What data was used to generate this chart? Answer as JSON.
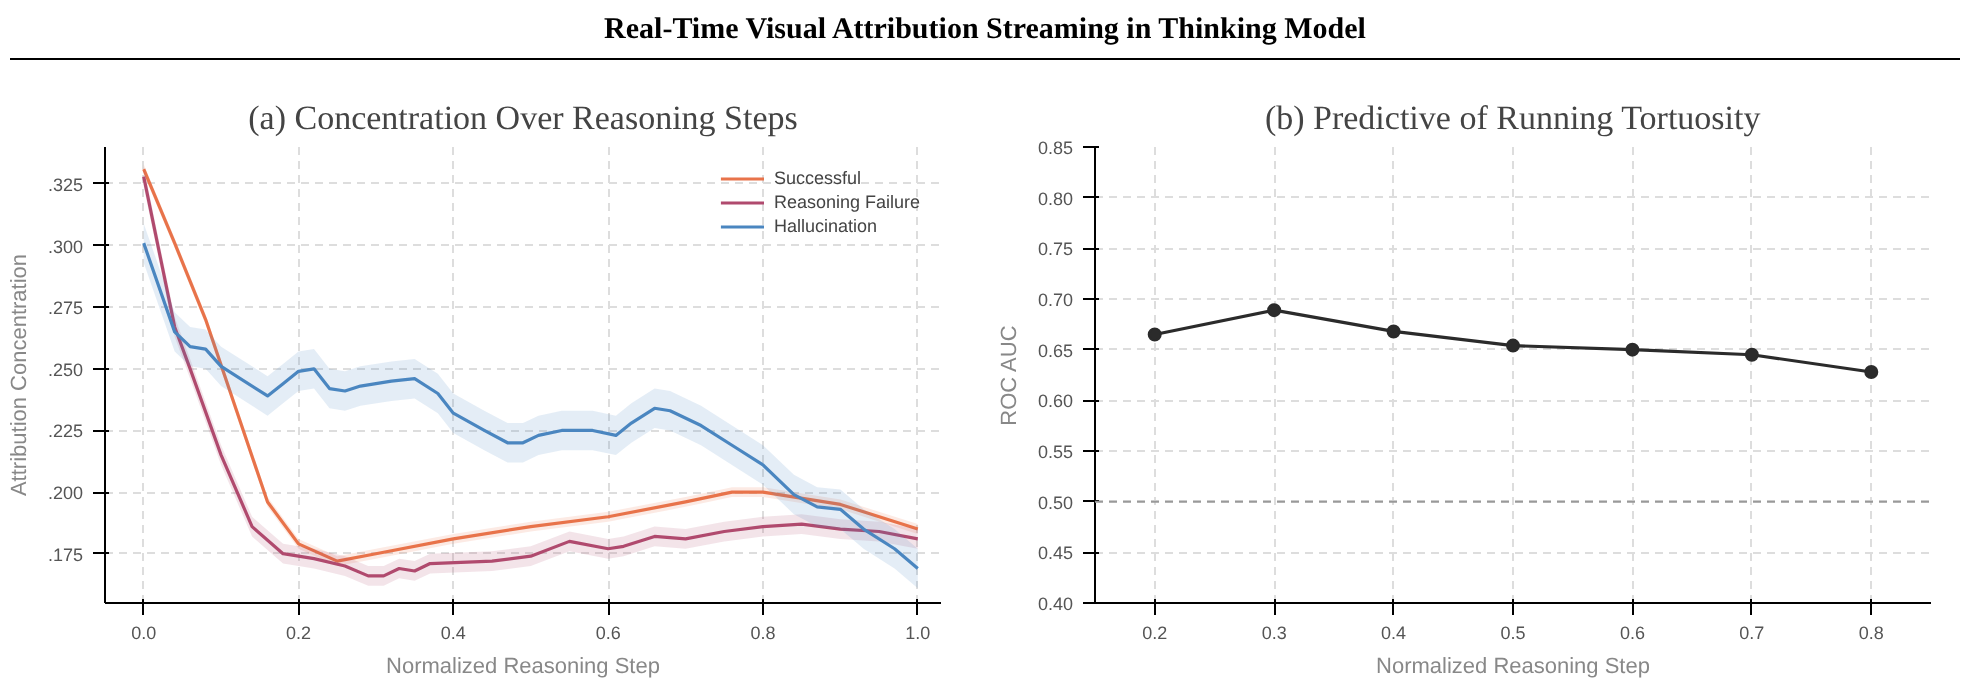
{
  "chart_data": [
    {
      "type": "other",
      "title": "Real-Time Visual Attribution Streaming in Thinking Model"
    },
    {
      "type": "line",
      "title": "(a) Concentration Over Reasoning Steps",
      "xlabel": "Normalized Reasoning Step",
      "ylabel": "Attribution Concentration",
      "xlim": [
        -0.05,
        1.03
      ],
      "ylim": [
        0.155,
        0.34
      ],
      "xticks": [
        {
          "value": 0,
          "label": "0.0"
        },
        0.2,
        0.4,
        0.6,
        0.8,
        {
          "value": 1,
          "label": "1.0"
        }
      ],
      "yticks": [
        {
          "value": 0.175,
          "label": ".175"
        },
        {
          "value": 0.2,
          "label": ".200"
        },
        {
          "value": 0.225,
          "label": ".225"
        },
        {
          "value": 0.25,
          "label": ".250"
        },
        {
          "value": 0.275,
          "label": ".275"
        },
        {
          "value": 0.3,
          "label": ".300"
        },
        {
          "value": 0.325,
          "label": ".325"
        }
      ],
      "grid": true,
      "legend": "top right",
      "series": [
        {
          "name": "Successful",
          "color": "#e8734a",
          "x": [
            0,
            0.04,
            0.08,
            0.12,
            0.16,
            0.2,
            0.25,
            0.3,
            0.4,
            0.5,
            0.6,
            0.7,
            0.76,
            0.8,
            0.9,
            1.0
          ],
          "values": [
            0.331,
            0.301,
            0.27,
            0.233,
            0.196,
            0.179,
            0.172,
            0.175,
            0.181,
            0.186,
            0.19,
            0.196,
            0.2,
            0.2,
            0.195,
            0.185
          ],
          "lower": [
            0.329,
            0.299,
            0.268,
            0.231,
            0.194,
            0.177,
            0.17,
            0.173,
            0.179,
            0.184,
            0.188,
            0.194,
            0.198,
            0.198,
            0.193,
            0.183
          ],
          "upper": [
            0.333,
            0.303,
            0.272,
            0.235,
            0.198,
            0.181,
            0.174,
            0.177,
            0.183,
            0.188,
            0.192,
            0.198,
            0.202,
            0.202,
            0.197,
            0.187
          ]
        },
        {
          "name": "Reasoning Failure",
          "color": "#b04a6e",
          "x": [
            0,
            0.04,
            0.06,
            0.1,
            0.14,
            0.18,
            0.22,
            0.26,
            0.29,
            0.31,
            0.33,
            0.35,
            0.37,
            0.45,
            0.5,
            0.55,
            0.6,
            0.62,
            0.66,
            0.7,
            0.75,
            0.8,
            0.85,
            0.9,
            0.95,
            1.0
          ],
          "values": [
            0.328,
            0.267,
            0.25,
            0.215,
            0.186,
            0.175,
            0.173,
            0.17,
            0.166,
            0.166,
            0.169,
            0.168,
            0.171,
            0.172,
            0.174,
            0.18,
            0.177,
            0.178,
            0.182,
            0.181,
            0.184,
            0.186,
            0.187,
            0.185,
            0.184,
            0.181
          ],
          "lower": [
            0.324,
            0.263,
            0.246,
            0.211,
            0.182,
            0.171,
            0.169,
            0.166,
            0.162,
            0.162,
            0.165,
            0.164,
            0.167,
            0.168,
            0.17,
            0.176,
            0.173,
            0.174,
            0.178,
            0.177,
            0.18,
            0.182,
            0.183,
            0.181,
            0.18,
            0.177
          ],
          "upper": [
            0.332,
            0.271,
            0.254,
            0.219,
            0.19,
            0.179,
            0.177,
            0.174,
            0.17,
            0.17,
            0.173,
            0.172,
            0.175,
            0.176,
            0.178,
            0.184,
            0.181,
            0.182,
            0.186,
            0.185,
            0.188,
            0.19,
            0.191,
            0.189,
            0.188,
            0.185
          ]
        },
        {
          "name": "Hallucination",
          "color": "#4a86c0",
          "x": [
            0,
            0.04,
            0.06,
            0.08,
            0.1,
            0.16,
            0.18,
            0.2,
            0.22,
            0.24,
            0.26,
            0.28,
            0.32,
            0.35,
            0.38,
            0.4,
            0.44,
            0.47,
            0.49,
            0.51,
            0.54,
            0.58,
            0.61,
            0.63,
            0.66,
            0.68,
            0.72,
            0.76,
            0.8,
            0.84,
            0.87,
            0.9,
            0.93,
            0.97,
            1.0
          ],
          "values": [
            0.301,
            0.265,
            0.259,
            0.258,
            0.251,
            0.239,
            0.244,
            0.249,
            0.25,
            0.242,
            0.241,
            0.243,
            0.245,
            0.246,
            0.24,
            0.232,
            0.225,
            0.22,
            0.22,
            0.223,
            0.225,
            0.225,
            0.223,
            0.228,
            0.234,
            0.233,
            0.227,
            0.219,
            0.211,
            0.199,
            0.194,
            0.193,
            0.185,
            0.177,
            0.169
          ],
          "lower": [
            0.293,
            0.257,
            0.251,
            0.25,
            0.243,
            0.231,
            0.236,
            0.241,
            0.242,
            0.234,
            0.233,
            0.235,
            0.237,
            0.238,
            0.232,
            0.224,
            0.217,
            0.212,
            0.212,
            0.215,
            0.217,
            0.217,
            0.215,
            0.22,
            0.226,
            0.225,
            0.219,
            0.211,
            0.203,
            0.191,
            0.186,
            0.185,
            0.177,
            0.169,
            0.161
          ],
          "upper": [
            0.309,
            0.273,
            0.267,
            0.266,
            0.259,
            0.247,
            0.252,
            0.257,
            0.258,
            0.25,
            0.249,
            0.251,
            0.253,
            0.254,
            0.248,
            0.24,
            0.233,
            0.228,
            0.228,
            0.231,
            0.233,
            0.233,
            0.231,
            0.236,
            0.242,
            0.241,
            0.235,
            0.227,
            0.219,
            0.207,
            0.202,
            0.201,
            0.193,
            0.185,
            0.177
          ]
        }
      ]
    },
    {
      "type": "line",
      "title": "(b) Predictive of Running Tortuosity",
      "xlabel": "Normalized Reasoning Step",
      "ylabel": "ROC AUC",
      "xlim": [
        0.15,
        0.85
      ],
      "ylim": [
        0.4,
        0.85
      ],
      "xticks": [
        0.2,
        0.3,
        0.4,
        0.5,
        0.6,
        0.7,
        0.8
      ],
      "yticks": [
        {
          "value": 0.4,
          "label": "0.40"
        },
        0.45,
        {
          "value": 0.5,
          "label": "0.50"
        },
        0.55,
        {
          "value": 0.6,
          "label": "0.60"
        },
        0.65,
        {
          "value": 0.7,
          "label": "0.70"
        },
        0.75,
        {
          "value": 0.8,
          "label": "0.80"
        },
        0.85
      ],
      "grid": true,
      "marker": "circle",
      "series": [
        {
          "color": "#2b2b2b",
          "x": [
            0.2,
            0.3,
            0.4,
            0.5,
            0.6,
            0.7,
            0.8
          ],
          "values": [
            0.665,
            0.689,
            0.668,
            0.654,
            0.65,
            0.645,
            0.628
          ]
        }
      ],
      "ref_lines": [
        {
          "axis": "y",
          "value": 0.5,
          "color": "#999999",
          "line_style": "dashed"
        }
      ]
    }
  ]
}
